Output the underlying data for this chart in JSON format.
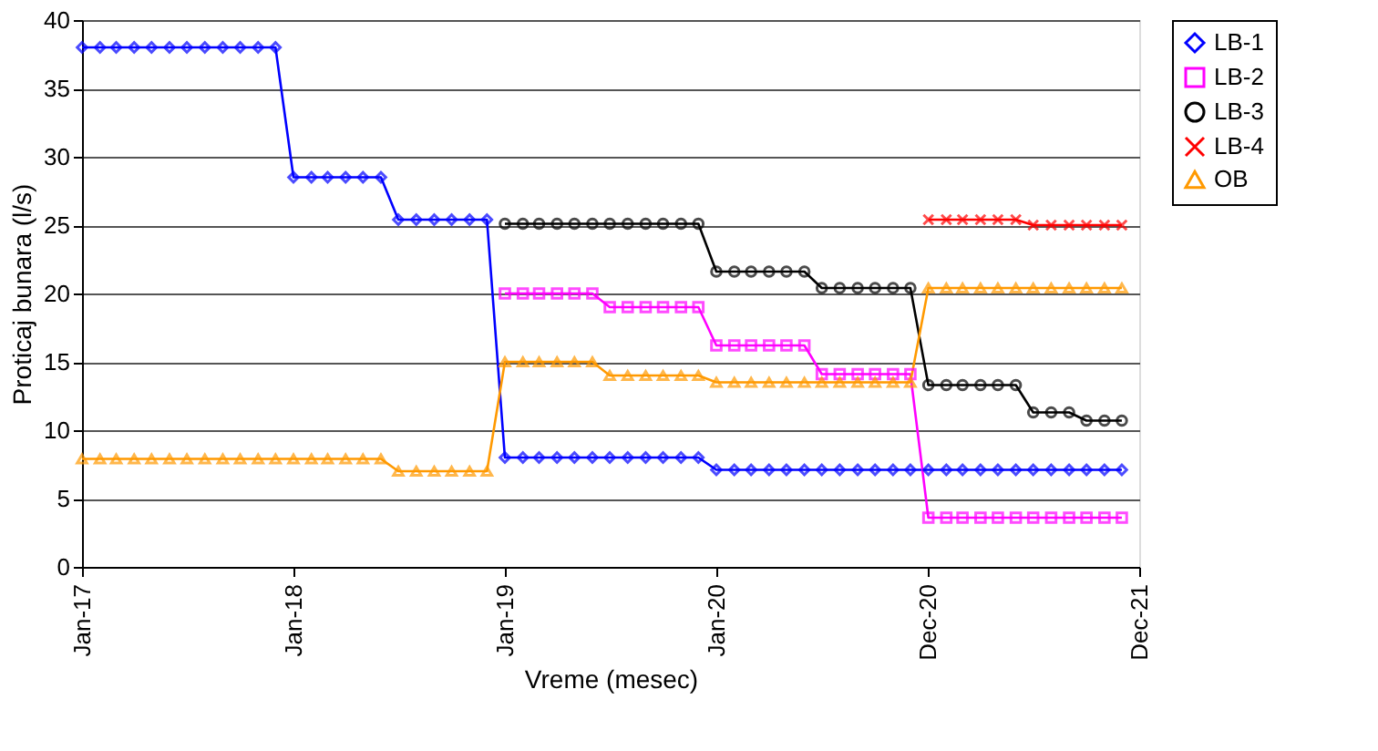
{
  "chart_data": {
    "type": "line",
    "xlabel": "Vreme (mesec)",
    "ylabel": "Proticaj bunara (l/s)",
    "x": [
      "2017-01",
      "2017-02",
      "2017-03",
      "2017-04",
      "2017-05",
      "2017-06",
      "2017-07",
      "2017-08",
      "2017-09",
      "2017-10",
      "2017-11",
      "2017-12",
      "2018-01",
      "2018-02",
      "2018-03",
      "2018-04",
      "2018-05",
      "2018-06",
      "2018-07",
      "2018-08",
      "2018-09",
      "2018-10",
      "2018-11",
      "2018-12",
      "2019-01",
      "2019-02",
      "2019-03",
      "2019-04",
      "2019-05",
      "2019-06",
      "2019-07",
      "2019-08",
      "2019-09",
      "2019-10",
      "2019-11",
      "2019-12",
      "2020-01",
      "2020-02",
      "2020-03",
      "2020-04",
      "2020-05",
      "2020-06",
      "2020-07",
      "2020-08",
      "2020-09",
      "2020-10",
      "2020-11",
      "2020-12",
      "2021-01",
      "2021-02",
      "2021-03",
      "2021-04",
      "2021-05",
      "2021-06",
      "2021-07",
      "2021-08",
      "2021-09",
      "2021-10",
      "2021-11",
      "2021-12"
    ],
    "series": [
      {
        "name": "LB-1",
        "color": "#0000ff",
        "marker": "diamond",
        "values": [
          38,
          38,
          38,
          38,
          38,
          38,
          38,
          38,
          38,
          38,
          38,
          38,
          28.5,
          28.5,
          28.5,
          28.5,
          28.5,
          28.5,
          25.4,
          25.4,
          25.4,
          25.4,
          25.4,
          25.4,
          8,
          8,
          8,
          8,
          8,
          8,
          8,
          8,
          8,
          8,
          8,
          8,
          7.1,
          7.1,
          7.1,
          7.1,
          7.1,
          7.1,
          7.1,
          7.1,
          7.1,
          7.1,
          7.1,
          7.1,
          7.1,
          7.1,
          7.1,
          7.1,
          7.1,
          7.1,
          7.1,
          7.1,
          7.1,
          7.1,
          7.1,
          7.1
        ]
      },
      {
        "name": "LB-2",
        "color": "#ff00ff",
        "marker": "square",
        "values": [
          null,
          null,
          null,
          null,
          null,
          null,
          null,
          null,
          null,
          null,
          null,
          null,
          null,
          null,
          null,
          null,
          null,
          null,
          null,
          null,
          null,
          null,
          null,
          null,
          20,
          20,
          20,
          20,
          20,
          20,
          19,
          19,
          19,
          19,
          19,
          19,
          16.2,
          16.2,
          16.2,
          16.2,
          16.2,
          16.2,
          14.1,
          14.1,
          14.1,
          14.1,
          14.1,
          14.1,
          3.6,
          3.6,
          3.6,
          3.6,
          3.6,
          3.6,
          3.6,
          3.6,
          3.6,
          3.6,
          3.6,
          3.6
        ]
      },
      {
        "name": "LB-3",
        "color": "#000000",
        "marker": "circle",
        "values": [
          null,
          null,
          null,
          null,
          null,
          null,
          null,
          null,
          null,
          null,
          null,
          null,
          null,
          null,
          null,
          null,
          null,
          null,
          null,
          null,
          null,
          null,
          null,
          null,
          25.1,
          25.1,
          25.1,
          25.1,
          25.1,
          25.1,
          25.1,
          25.1,
          25.1,
          25.1,
          25.1,
          25.1,
          21.6,
          21.6,
          21.6,
          21.6,
          21.6,
          21.6,
          20.4,
          20.4,
          20.4,
          20.4,
          20.4,
          20.4,
          13.3,
          13.3,
          13.3,
          13.3,
          13.3,
          13.3,
          11.3,
          11.3,
          11.3,
          10.7,
          10.7,
          10.7
        ]
      },
      {
        "name": "LB-4",
        "color": "#ff0000",
        "marker": "cross",
        "values": [
          null,
          null,
          null,
          null,
          null,
          null,
          null,
          null,
          null,
          null,
          null,
          null,
          null,
          null,
          null,
          null,
          null,
          null,
          null,
          null,
          null,
          null,
          null,
          null,
          null,
          null,
          null,
          null,
          null,
          null,
          null,
          null,
          null,
          null,
          null,
          null,
          null,
          null,
          null,
          null,
          null,
          null,
          null,
          null,
          null,
          null,
          null,
          null,
          25.4,
          25.4,
          25.4,
          25.4,
          25.4,
          25.4,
          25,
          25,
          25,
          25,
          25,
          25
        ]
      },
      {
        "name": "OB",
        "color": "#ff9900",
        "marker": "triangle",
        "values": [
          7.9,
          7.9,
          7.9,
          7.9,
          7.9,
          7.9,
          7.9,
          7.9,
          7.9,
          7.9,
          7.9,
          7.9,
          7.9,
          7.9,
          7.9,
          7.9,
          7.9,
          7.9,
          7,
          7,
          7,
          7,
          7,
          7,
          15,
          15,
          15,
          15,
          15,
          15,
          14,
          14,
          14,
          14,
          14,
          14,
          13.5,
          13.5,
          13.5,
          13.5,
          13.5,
          13.5,
          13.5,
          13.5,
          13.5,
          13.5,
          13.5,
          13.5,
          20.4,
          20.4,
          20.4,
          20.4,
          20.4,
          20.4,
          20.4,
          20.4,
          20.4,
          20.4,
          20.4,
          20.4
        ]
      }
    ],
    "xlim": [
      "2017-01",
      "2021-12-31"
    ],
    "xticks": [
      {
        "value": "2017-01",
        "label": "Jan-17"
      },
      {
        "value": "2018-01",
        "label": "Jan-18"
      },
      {
        "value": "2019-01",
        "label": "Jan-19"
      },
      {
        "value": "2020-01",
        "label": "Jan-20"
      },
      {
        "value": "2020-12-31",
        "label": "Dec-20"
      },
      {
        "value": "2021-12-31",
        "label": "Dec-21"
      }
    ],
    "ylim": [
      0,
      40
    ],
    "yticks": [
      0,
      5,
      10,
      15,
      20,
      25,
      30,
      35,
      40
    ],
    "grid": "y",
    "legend": "right",
    "line_style": "solid"
  }
}
